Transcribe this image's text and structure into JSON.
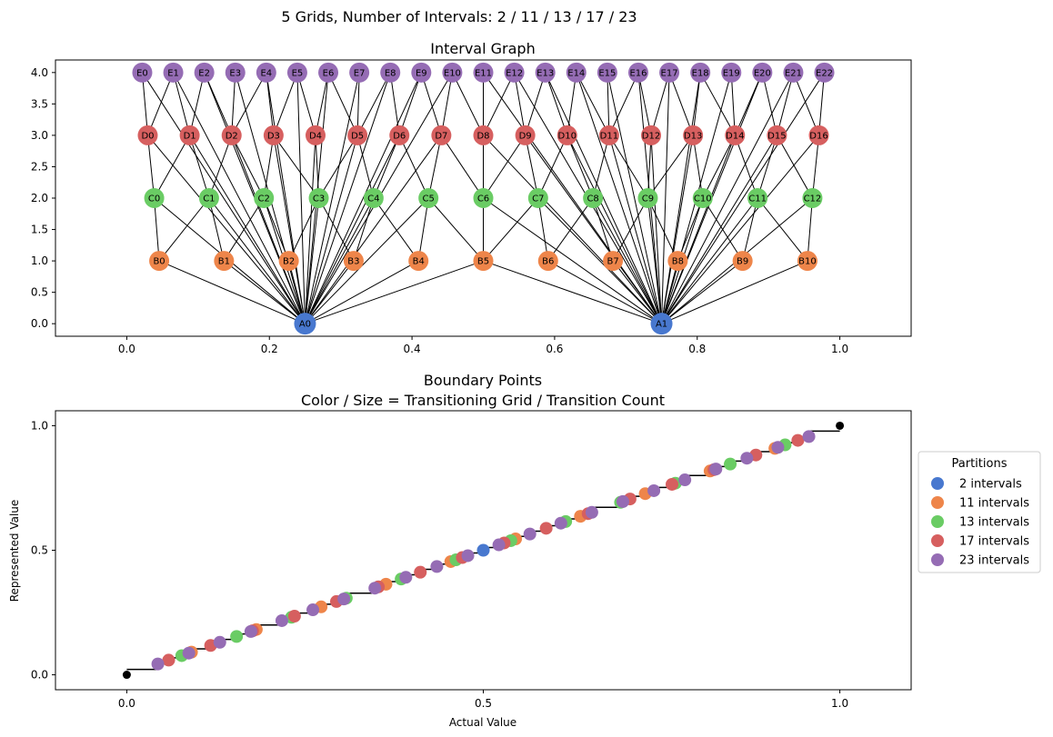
{
  "suptitle": "5 Grids, Number of Intervals: 2 / 11 / 13 / 17 / 23",
  "chart_data": [
    {
      "type": "network",
      "title": "Interval Graph",
      "xlim": [
        -0.1,
        1.1
      ],
      "ylim": [
        -0.2,
        4.2
      ],
      "xticks": [
        "0.0",
        "0.2",
        "0.4",
        "0.6",
        "0.8",
        "1.0"
      ],
      "yticks": [
        "0.0",
        "0.5",
        "1.0",
        "1.5",
        "2.0",
        "2.5",
        "3.0",
        "3.5",
        "4.0"
      ],
      "grids": [
        {
          "prefix": "A",
          "intervals": 2,
          "level": 0,
          "color": "#4878cf"
        },
        {
          "prefix": "B",
          "intervals": 11,
          "level": 1,
          "color": "#ee854a"
        },
        {
          "prefix": "C",
          "intervals": 13,
          "level": 2,
          "color": "#6acc64"
        },
        {
          "prefix": "D",
          "intervals": 17,
          "level": 3,
          "color": "#d65f5f"
        },
        {
          "prefix": "E",
          "intervals": 23,
          "level": 4,
          "color": "#956cb4"
        }
      ],
      "edge_rule": "overlapping intervals between adjacent levels and every node to its A parent"
    },
    {
      "type": "scatter",
      "title": "Boundary Points",
      "subtitle": "Color / Size = Transitioning Grid / Transition Count",
      "xlabel": "Actual Value",
      "ylabel": "Represented Value",
      "xlim": [
        -0.1,
        1.1
      ],
      "ylim": [
        -0.06,
        1.06
      ],
      "xticks": [
        "0.0",
        "0.5",
        "1.0"
      ],
      "yticks": [
        "0.0",
        "0.5",
        "1.0"
      ],
      "legend_title": "Partitions",
      "legend_position": "right",
      "series": [
        {
          "name": "2 intervals",
          "intervals": 2,
          "color": "#4878cf"
        },
        {
          "name": "11 intervals",
          "intervals": 11,
          "color": "#ee854a"
        },
        {
          "name": "13 intervals",
          "intervals": 13,
          "color": "#6acc64"
        },
        {
          "name": "17 intervals",
          "intervals": 17,
          "color": "#d65f5f"
        },
        {
          "name": "23 intervals",
          "intervals": 23,
          "color": "#956cb4"
        }
      ],
      "step_endpoints": [
        [
          0,
          0
        ],
        [
          1,
          1
        ]
      ]
    }
  ]
}
